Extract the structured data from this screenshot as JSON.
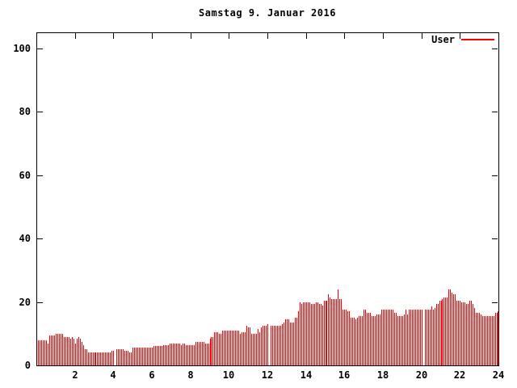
{
  "title": "Samstag 9. Januar 2016",
  "legend": {
    "label": "User",
    "color": "#ff0000",
    "position": "top-right"
  },
  "colors": {
    "background": "#ffffff",
    "border": "#000000",
    "text": "#000000",
    "bars": "#ff0000"
  },
  "chart_data": {
    "type": "bar",
    "style": "impulses",
    "title": "Samstag 9. Januar 2016",
    "xlabel": "",
    "ylabel": "",
    "xlim": [
      0,
      24
    ],
    "ylim": [
      0,
      105
    ],
    "x_ticks": [
      2,
      4,
      6,
      8,
      10,
      12,
      14,
      16,
      18,
      20,
      22,
      24
    ],
    "y_ticks": [
      0,
      20,
      40,
      60,
      80,
      100
    ],
    "grid": false,
    "legend_position": "top-right",
    "x_unit": "hour-of-day",
    "sample_interval_minutes": 5,
    "first_sample_minute": 5,
    "note_zero_values_are_gaps": [
      4.08,
      12.08,
      20.08
    ],
    "series": [
      {
        "name": "User",
        "color": "#ff0000",
        "values": [
          8,
          8,
          8,
          8,
          8,
          8,
          7,
          9.5,
          9.5,
          9.5,
          9.5,
          10,
          10,
          10,
          10,
          10,
          9,
          9,
          9,
          9,
          8.5,
          9,
          8.5,
          7,
          8.5,
          9,
          8.5,
          7.5,
          6.5,
          5,
          5,
          4,
          4,
          4,
          4,
          4,
          4,
          4,
          4,
          4,
          4,
          4,
          4,
          4,
          4,
          4,
          4.5,
          4.5,
          0,
          5,
          5,
          5,
          5,
          5,
          4.5,
          4.5,
          4.5,
          4,
          4,
          5.5,
          5.5,
          5.5,
          5.5,
          5.5,
          5.5,
          5.5,
          5.5,
          5.5,
          5.5,
          5.5,
          5.5,
          5.5,
          6,
          6,
          6,
          6,
          6,
          6,
          6.5,
          6.5,
          6.5,
          6.5,
          7,
          7,
          7,
          7,
          7,
          7,
          7,
          6.5,
          7,
          7,
          6.5,
          6.5,
          6.5,
          6.5,
          6.5,
          6.5,
          7.5,
          7.5,
          7.5,
          7.5,
          7.5,
          7.5,
          7,
          7,
          7,
          8.5,
          9,
          9,
          10.5,
          10.5,
          10.5,
          10,
          10,
          11,
          11,
          11,
          11,
          11,
          11,
          11,
          11,
          11,
          11,
          11,
          10,
          10.5,
          10.5,
          10.5,
          12.5,
          12,
          12,
          10,
          10,
          10,
          10,
          11.5,
          10.5,
          12,
          12.5,
          12.5,
          12.5,
          13,
          0,
          12.5,
          12.5,
          12.5,
          12.5,
          12.5,
          12.5,
          12.5,
          13,
          13.5,
          14.5,
          14.5,
          14.5,
          13.5,
          13.5,
          13.5,
          15,
          15,
          17,
          20,
          19.5,
          20,
          20,
          20,
          20,
          20,
          19.5,
          19.5,
          19.5,
          20,
          20,
          19.5,
          19.5,
          19,
          20.5,
          20.5,
          20.5,
          22.5,
          21.5,
          21,
          21,
          21,
          21,
          24,
          21,
          21,
          17.5,
          17.5,
          17.5,
          17,
          17,
          15,
          15,
          15,
          14.5,
          15,
          15.5,
          15.5,
          15.5,
          17.5,
          17.5,
          16.5,
          16.5,
          16.5,
          15.5,
          15.5,
          15.5,
          16,
          16,
          16,
          17.5,
          17.5,
          17.5,
          17.5,
          17.5,
          17.5,
          17.5,
          17.5,
          16.5,
          16.5,
          15.5,
          15.5,
          15.5,
          15.5,
          16,
          17.5,
          16,
          17.5,
          17.5,
          17.5,
          17.5,
          17.5,
          17.5,
          17.5,
          17.5,
          17.5,
          0,
          17.5,
          17.5,
          17.5,
          17.5,
          18.5,
          17.5,
          18,
          19.5,
          19.5,
          20.5,
          20.5,
          21,
          21.5,
          21.5,
          21.5,
          24,
          24,
          23,
          22.5,
          22.5,
          20.5,
          20.5,
          20.5,
          20,
          20,
          20,
          19.5,
          19.5,
          20.5,
          20.5,
          19.5,
          18,
          16.5,
          16.5,
          16.5,
          16,
          15.5,
          15.5,
          15.5,
          15.5,
          15.5,
          15.5,
          15.5,
          15.5,
          16.5,
          16.5,
          17
        ]
      }
    ]
  }
}
